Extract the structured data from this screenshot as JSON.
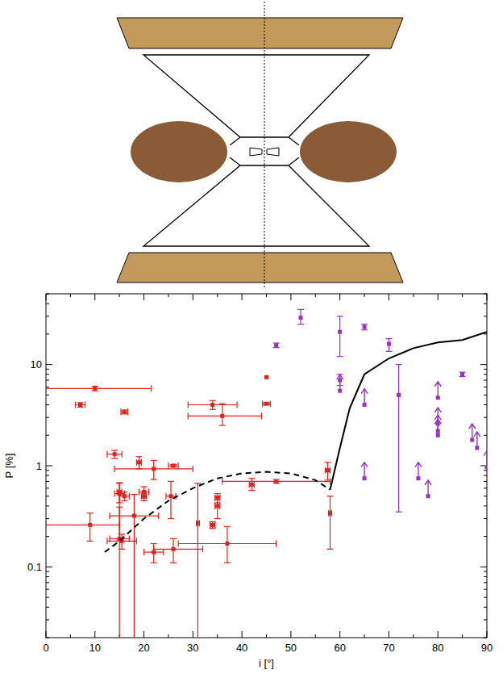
{
  "chart_data": {
    "type": "scatter",
    "xlabel": "i [°]",
    "ylabel": "P [%]",
    "xlim": [
      0,
      90
    ],
    "xticks": [
      0,
      10,
      20,
      30,
      40,
      50,
      60,
      70,
      80,
      90
    ],
    "ylim": [
      0.02,
      50
    ],
    "yticks": [
      0.1,
      1,
      10
    ],
    "log": "y",
    "grid": false,
    "series": [
      {
        "type": "scatter",
        "marker": "square",
        "color": "#e3201c",
        "x": [
          7,
          10,
          16,
          14,
          9,
          15,
          15,
          15,
          16,
          15.5,
          18,
          19,
          20,
          20,
          22,
          22,
          26,
          25.5,
          26,
          31,
          34,
          34,
          35,
          35,
          36,
          37,
          42,
          45,
          45,
          47,
          57.5,
          58
        ],
        "values": [
          4.0,
          5.8,
          3.4,
          1.3,
          0.26,
          0.55,
          0.53,
          0.19,
          0.5,
          0.18,
          0.32,
          1.08,
          0.55,
          0.5,
          0.93,
          0.14,
          1.0,
          0.5,
          0.15,
          0.27,
          4.0,
          0.26,
          0.48,
          0.4,
          3.1,
          0.17,
          0.65,
          7.5,
          4.1,
          0.7,
          0.9,
          0.34
        ],
        "xerr": [
          [
            1,
            1
          ],
          [
            10,
            11.5
          ],
          [
            0.7,
            0.7
          ],
          [
            1.5,
            1.5
          ],
          [
            9,
            6
          ],
          [
            0.5,
            0.5
          ],
          [
            1,
            1
          ],
          [
            2,
            2
          ],
          [
            1,
            1
          ],
          [
            3,
            3
          ],
          [
            5,
            5
          ],
          [
            0.5,
            0.5
          ],
          [
            1,
            1
          ],
          [
            0.5,
            0.5
          ],
          [
            8,
            8
          ],
          [
            2,
            2
          ],
          [
            1,
            1
          ],
          [
            1,
            1
          ],
          [
            4,
            6
          ],
          [
            0.3,
            0.3
          ],
          [
            5,
            5
          ],
          [
            0.5,
            0.5
          ],
          [
            0.5,
            0.5
          ],
          [
            0.5,
            0.5
          ],
          [
            7,
            8
          ],
          [
            10,
            10
          ],
          [
            0.5,
            0.5
          ],
          null,
          [
            0.8,
            0.8
          ],
          [
            11,
            11
          ],
          [
            0.5,
            0.5
          ],
          [
            0.3,
            0.3
          ]
        ],
        "yerr": [
          [
            0.2,
            0.2
          ],
          [
            0.3,
            0.3
          ],
          [
            0.15,
            0.15
          ],
          [
            0.12,
            0.12
          ],
          [
            0.08,
            0.08
          ],
          [
            0.12,
            0.12
          ],
          [
            0.35,
            0.15
          ],
          [
            0.175,
            0.2
          ],
          [
            0.05,
            0.05
          ],
          [
            0.03,
            0.03
          ],
          [
            0.31,
            0.2
          ],
          [
            0.15,
            0.15
          ],
          [
            0.07,
            0.07
          ],
          [
            0.05,
            0.05
          ],
          [
            0.2,
            0.2
          ],
          [
            0.03,
            0.03
          ],
          [
            0.03,
            0.03
          ],
          [
            0.2,
            0.2
          ],
          [
            0.04,
            0.04
          ],
          [
            0.265,
            0.4
          ],
          [
            0.4,
            0.4
          ],
          [
            0.02,
            0.02
          ],
          [
            0.05,
            0.05
          ],
          [
            0.1,
            0.1
          ],
          [
            0.6,
            1.0
          ],
          [
            0.06,
            0.08
          ],
          [
            0.08,
            0.1
          ],
          null,
          [
            0.1,
            0.1
          ],
          [
            0.03,
            0.03
          ],
          [
            0.18,
            0.18
          ],
          [
            0.19,
            0.16
          ]
        ]
      },
      {
        "type": "scatter",
        "marker": "square",
        "color": "#9a2fd0",
        "x": [
          47,
          52,
          60,
          60,
          65,
          70,
          72,
          85
        ],
        "values": [
          15.5,
          29,
          21,
          7,
          23.5,
          16,
          5,
          8
        ],
        "yerr": [
          [
            0.8,
            0.8
          ],
          [
            4,
            6
          ],
          [
            9,
            9
          ],
          [
            0.8,
            1
          ],
          [
            1.5,
            1.5
          ],
          [
            2.5,
            2
          ],
          [
            4.65,
            5
          ],
          [
            0.4,
            0.4
          ]
        ]
      },
      {
        "type": "scatter",
        "marker": "arrow",
        "color": "#9a2fd0",
        "x": [
          60,
          65,
          65,
          76,
          78,
          80,
          80,
          80,
          80,
          87,
          88,
          90
        ],
        "values": [
          5.5,
          4.0,
          0.75,
          0.75,
          0.5,
          4.7,
          2.6,
          2.2,
          2.0,
          1.8,
          1.5,
          0.97
        ]
      },
      {
        "type": "line",
        "line_style": "dashed",
        "color": "#000000",
        "x": [
          12,
          15,
          20,
          25,
          30,
          35,
          40,
          45,
          50,
          55,
          58
        ],
        "values": [
          0.14,
          0.18,
          0.3,
          0.45,
          0.6,
          0.75,
          0.84,
          0.87,
          0.84,
          0.72,
          0.58
        ]
      },
      {
        "type": "line",
        "line_style": "solid",
        "color": "#000000",
        "x": [
          58,
          60,
          62,
          65,
          70,
          75,
          80,
          85,
          90
        ],
        "values": [
          0.58,
          1.5,
          3.7,
          8,
          11.5,
          14.5,
          16.5,
          17.5,
          21
        ]
      }
    ]
  }
}
